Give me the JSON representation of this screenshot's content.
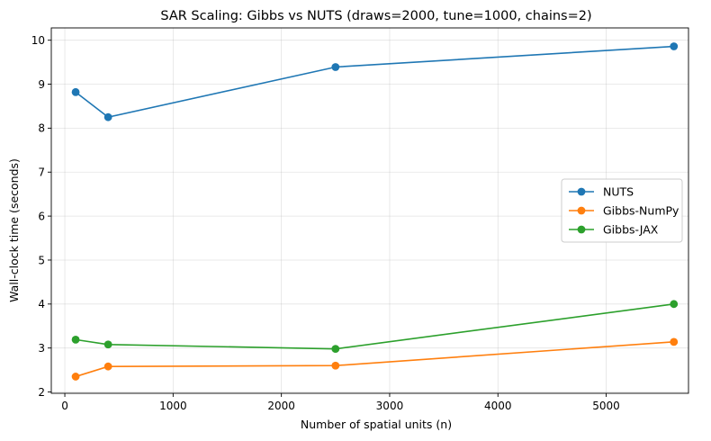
{
  "chart_data": {
    "type": "line",
    "title": "SAR Scaling: Gibbs vs NUTS (draws=2000, tune=1000, chains=2)",
    "xlabel": "Number of spatial units (n)",
    "ylabel": "Wall-clock time (seconds)",
    "xlim": [
      -125,
      5760
    ],
    "ylim": [
      1.97,
      10.28
    ],
    "xticks": [
      0,
      1000,
      2000,
      3000,
      4000,
      5000
    ],
    "yticks": [
      2,
      3,
      4,
      5,
      6,
      7,
      8,
      9,
      10
    ],
    "grid": true,
    "legend_position": "center-right",
    "x": [
      100,
      400,
      2500,
      5625
    ],
    "series": [
      {
        "name": "NUTS",
        "color": "#1f77b4",
        "values": [
          8.82,
          8.25,
          9.39,
          9.86
        ]
      },
      {
        "name": "Gibbs-NumPy",
        "color": "#ff7f0e",
        "values": [
          2.35,
          2.58,
          2.6,
          3.14
        ]
      },
      {
        "name": "Gibbs-JAX",
        "color": "#2ca02c",
        "values": [
          3.19,
          3.08,
          2.98,
          4.0
        ]
      }
    ]
  }
}
